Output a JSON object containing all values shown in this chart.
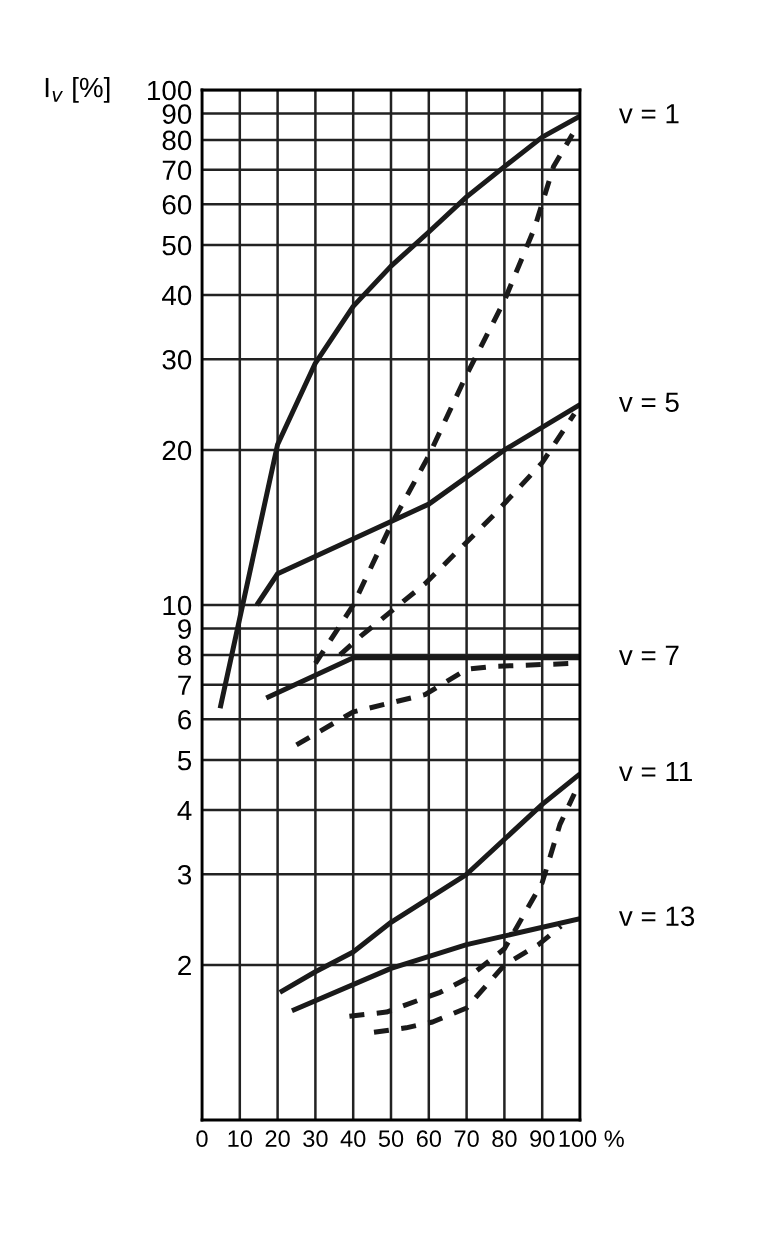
{
  "chart_data": {
    "type": "line",
    "ylabel": "I$_{v}$ [%]",
    "log": "y",
    "grid": true,
    "marker": "none",
    "xlim": [
      0,
      100
    ],
    "xticks": [
      0,
      10,
      20,
      30,
      40,
      50,
      60,
      70,
      80,
      90,
      {
        "value": 100,
        "label": "100 %"
      }
    ],
    "ylim": [
      1,
      100
    ],
    "yticks": [
      2,
      3,
      4,
      5,
      6,
      7,
      8,
      9,
      10,
      20,
      30,
      40,
      50,
      60,
      70,
      80,
      90,
      100
    ],
    "series": [
      {
        "name": "v = 1",
        "color": "#1a1a1a",
        "line_style": "solid",
        "x": [
          4.8,
          20,
          30,
          40,
          50,
          60,
          70,
          80,
          90,
          100
        ],
        "values": [
          6.3,
          20.5,
          29.5,
          38,
          45.5,
          53,
          62,
          71,
          81,
          89
        ]
      },
      {
        "color": "#1a1a1a",
        "line_style": "dashed",
        "x": [
          30,
          40,
          50,
          60,
          70,
          80,
          88,
          93,
          98
        ],
        "values": [
          7.7,
          10,
          14.3,
          19.5,
          28,
          39,
          54,
          71,
          82
        ]
      },
      {
        "name": "v = 5",
        "color": "#1a1a1a",
        "line_style": "solid",
        "x": [
          14.5,
          20,
          60,
          80,
          100
        ],
        "values": [
          10,
          11.5,
          15.7,
          20,
          24.5
        ]
      },
      {
        "color": "#1a1a1a",
        "line_style": "dashed",
        "x": [
          36.5,
          42,
          59,
          77,
          90,
          98.5
        ],
        "values": [
          8,
          8.7,
          11,
          14.9,
          18.9,
          23.5
        ]
      },
      {
        "name": "v = 7",
        "color": "#1a1a1a",
        "line_style": "solid",
        "x": [
          17,
          40,
          100
        ],
        "values": [
          6.6,
          7.9,
          7.9
        ]
      },
      {
        "color": "#1a1a1a",
        "line_style": "dashed",
        "x": [
          25,
          40,
          59,
          70,
          77,
          98
        ],
        "values": [
          5.35,
          6.2,
          6.7,
          7.5,
          7.6,
          7.7
        ]
      },
      {
        "name": "v = 11",
        "color": "#1a1a1a",
        "line_style": "solid",
        "x": [
          20.6,
          30,
          40,
          50,
          70,
          90,
          100
        ],
        "values": [
          1.77,
          1.94,
          2.12,
          2.42,
          3.0,
          4.1,
          4.7
        ]
      },
      {
        "color": "#1a1a1a",
        "line_style": "dashed",
        "x": [
          39,
          48.8,
          63,
          70,
          80,
          90,
          94.7,
          98.5
        ],
        "values": [
          1.59,
          1.62,
          1.77,
          1.88,
          2.15,
          2.89,
          3.75,
          4.3
        ]
      },
      {
        "name": "v = 13",
        "color": "#1a1a1a",
        "line_style": "solid",
        "x": [
          23.8,
          50,
          70,
          100
        ],
        "values": [
          1.63,
          1.97,
          2.19,
          2.46
        ]
      },
      {
        "color": "#1a1a1a",
        "line_style": "dashed",
        "x": [
          45.5,
          54,
          61,
          70,
          80,
          89,
          95
        ],
        "values": [
          1.48,
          1.51,
          1.55,
          1.65,
          2.0,
          2.19,
          2.38
        ]
      }
    ]
  }
}
